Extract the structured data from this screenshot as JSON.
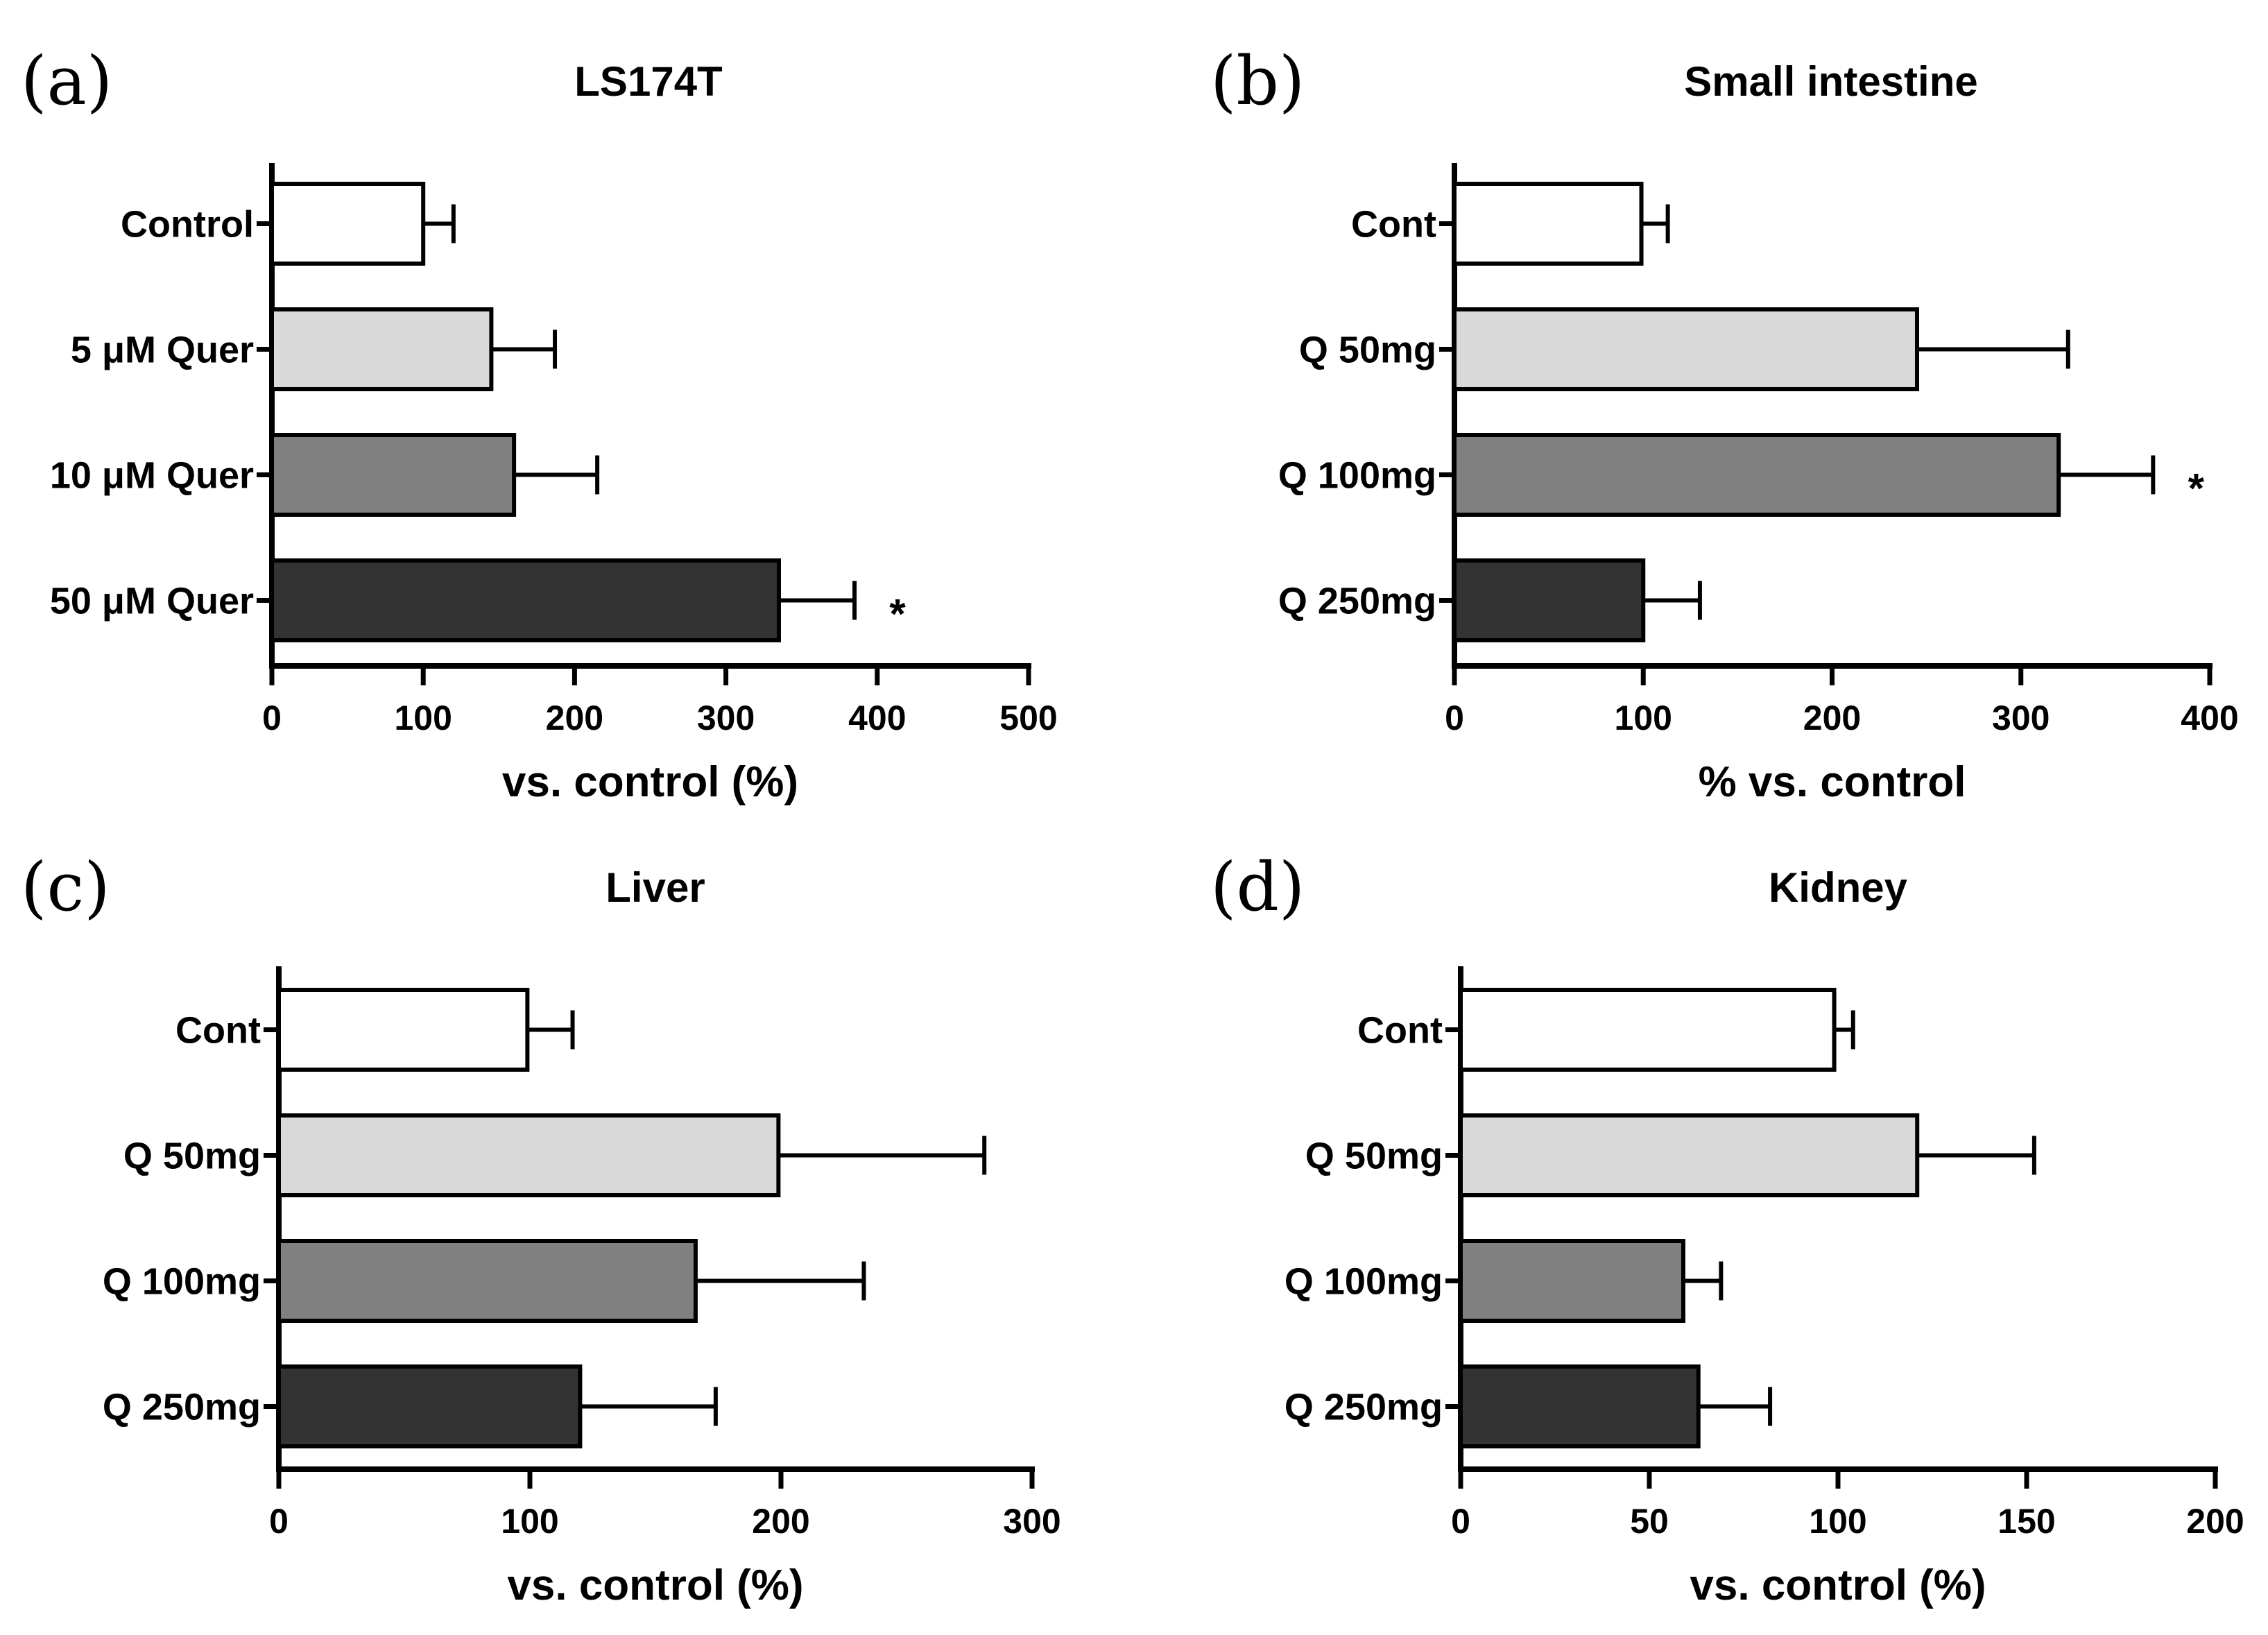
{
  "chart_data": [
    {
      "panel": "(a)",
      "type": "bar",
      "orientation": "horizontal",
      "title": "LS174T",
      "xlabel": "vs. control (%)",
      "ylabel": "",
      "xlim": [
        0,
        500
      ],
      "ticks": [
        0,
        100,
        200,
        300,
        400,
        500
      ],
      "categories": [
        "Control",
        "5 μM Quer",
        "10 μM Quer",
        "50 μM Quer"
      ],
      "values": [
        100,
        145,
        160,
        335
      ],
      "errors": [
        20,
        42,
        55,
        50
      ],
      "significance": [
        "",
        "",
        "",
        "*"
      ],
      "colors": [
        "#ffffff",
        "#d9d9d9",
        "#808080",
        "#333333"
      ]
    },
    {
      "panel": "(b)",
      "type": "bar",
      "orientation": "horizontal",
      "title": "Small intestine",
      "xlabel": "% vs. control",
      "ylabel": "",
      "xlim": [
        0,
        400
      ],
      "ticks": [
        0,
        100,
        200,
        300,
        400
      ],
      "categories": [
        "Cont",
        "Q 50mg",
        "Q 100mg",
        "Q 250mg"
      ],
      "values": [
        99,
        245,
        320,
        100
      ],
      "errors": [
        14,
        80,
        50,
        30
      ],
      "significance": [
        "",
        "",
        "*",
        ""
      ],
      "colors": [
        "#ffffff",
        "#d9d9d9",
        "#808080",
        "#333333"
      ]
    },
    {
      "panel": "(c)",
      "type": "bar",
      "orientation": "horizontal",
      "title": "Liver",
      "xlabel": "vs. control (%)",
      "ylabel": "",
      "xlim": [
        0,
        300
      ],
      "ticks": [
        0,
        100,
        200,
        300
      ],
      "categories": [
        "Cont",
        "Q 50mg",
        "Q 100mg",
        "Q 250mg"
      ],
      "values": [
        99,
        199,
        166,
        120
      ],
      "errors": [
        18,
        82,
        67,
        54
      ],
      "significance": [
        "",
        "",
        "",
        ""
      ],
      "colors": [
        "#ffffff",
        "#d9d9d9",
        "#808080",
        "#333333"
      ]
    },
    {
      "panel": "(d)",
      "type": "bar",
      "orientation": "horizontal",
      "title": "Kidney",
      "xlabel": "vs. control (%)",
      "ylabel": "",
      "xlim": [
        0,
        200
      ],
      "ticks": [
        0,
        50,
        100,
        150,
        200
      ],
      "categories": [
        "Cont",
        "Q 50mg",
        "Q 100mg",
        "Q 250mg"
      ],
      "values": [
        99,
        121,
        59,
        63
      ],
      "errors": [
        5,
        31,
        10,
        19
      ],
      "significance": [
        "",
        "",
        "",
        ""
      ],
      "colors": [
        "#ffffff",
        "#d9d9d9",
        "#808080",
        "#333333"
      ]
    }
  ]
}
